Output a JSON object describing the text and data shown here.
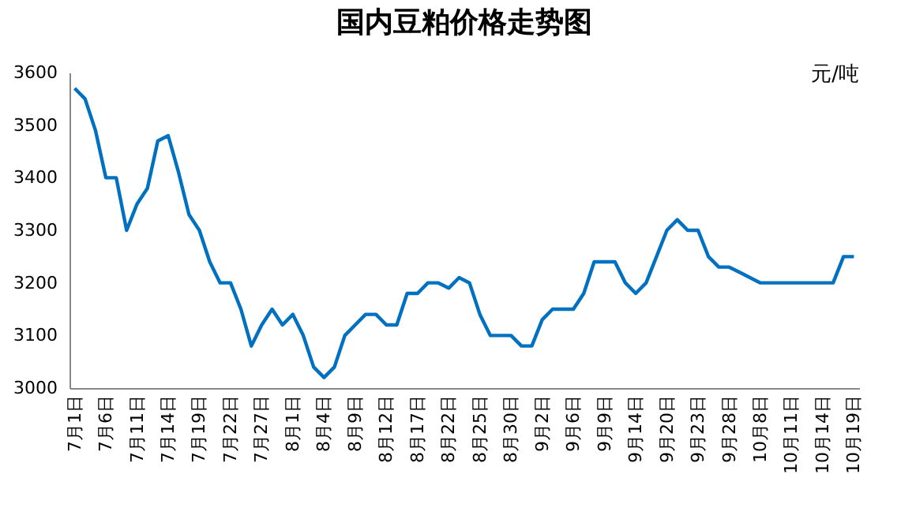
{
  "chart_data": {
    "type": "line",
    "title": "国内豆粕价格走势图",
    "ylabel": "元/吨",
    "categories": [
      "7月1日",
      null,
      null,
      "7月6日",
      null,
      null,
      "7月11日",
      null,
      null,
      "7月14日",
      null,
      null,
      "7月19日",
      null,
      null,
      "7月22日",
      null,
      null,
      "7月27日",
      null,
      null,
      "8月1日",
      null,
      null,
      "8月4日",
      null,
      null,
      "8月9日",
      null,
      null,
      "8月12日",
      null,
      null,
      "8月17日",
      null,
      null,
      "8月22日",
      null,
      null,
      "8月25日",
      null,
      null,
      "8月30日",
      null,
      null,
      "9月2日",
      null,
      null,
      "9月6日",
      null,
      null,
      "9月9日",
      null,
      null,
      "9月14日",
      null,
      null,
      "9月20日",
      null,
      null,
      "9月23日",
      null,
      null,
      "9月28日",
      null,
      null,
      "10月8日",
      null,
      null,
      "10月11日",
      null,
      null,
      "10月14日",
      null,
      null,
      "10月19日"
    ],
    "series": [
      {
        "color": "#0070c0",
        "values": [
          3570,
          3550,
          3490,
          3400,
          3400,
          3300,
          3350,
          3380,
          3470,
          3480,
          3410,
          3330,
          3300,
          3240,
          3200,
          3200,
          3150,
          3080,
          3120,
          3150,
          3120,
          3140,
          3100,
          3040,
          3020,
          3040,
          3100,
          3120,
          3140,
          3140,
          3120,
          3120,
          3180,
          3180,
          3200,
          3200,
          3190,
          3210,
          3200,
          3140,
          3100,
          3100,
          3100,
          3080,
          3080,
          3130,
          3150,
          3150,
          3150,
          3180,
          3240,
          3240,
          3240,
          3200,
          3180,
          3200,
          3250,
          3300,
          3320,
          3300,
          3300,
          3250,
          3230,
          3230,
          3220,
          3210,
          3200,
          3200,
          3200,
          3200,
          3200,
          3200,
          3200,
          3200,
          3250,
          3250
        ]
      }
    ],
    "ylim": [
      3000,
      3600
    ],
    "yticks": [
      3000,
      3100,
      3200,
      3300,
      3400,
      3500,
      3600
    ],
    "grid": false,
    "line_style": "solid"
  }
}
